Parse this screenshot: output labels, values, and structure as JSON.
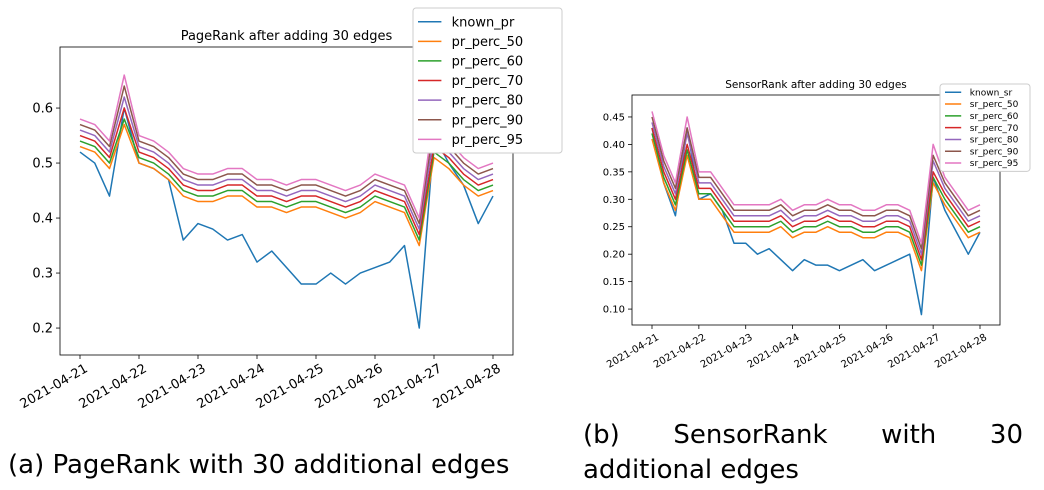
{
  "chart_data": [
    {
      "type": "line",
      "title": "PageRank after adding 30 edges",
      "caption": "(a) PageRank with 30 additional edges",
      "categories": [
        "2021-04-21",
        null,
        null,
        null,
        "2021-04-22",
        null,
        null,
        null,
        "2021-04-23",
        null,
        null,
        null,
        "2021-04-24",
        null,
        null,
        null,
        "2021-04-25",
        null,
        null,
        null,
        "2021-04-26",
        null,
        null,
        null,
        "2021-04-27",
        null,
        null,
        null,
        "2021-04-28"
      ],
      "ylim": [
        0.151,
        0.711
      ],
      "yticks": [
        0.2,
        0.3,
        0.4,
        0.5,
        0.6
      ],
      "legend": "upper right",
      "series": [
        {
          "name": "known_pr",
          "color": "#1f77b4",
          "values": [
            0.52,
            0.5,
            0.44,
            0.6,
            0.5,
            0.49,
            0.47,
            0.36,
            0.39,
            0.38,
            0.36,
            0.37,
            0.32,
            0.34,
            0.31,
            0.28,
            0.28,
            0.3,
            0.28,
            0.3,
            0.31,
            0.32,
            0.35,
            0.2,
            0.55,
            0.5,
            0.46,
            0.39,
            0.44
          ]
        },
        {
          "name": "pr_perc_50",
          "color": "#ff7f0e",
          "values": [
            0.53,
            0.52,
            0.49,
            0.57,
            0.5,
            0.49,
            0.47,
            0.44,
            0.43,
            0.43,
            0.44,
            0.44,
            0.42,
            0.42,
            0.41,
            0.42,
            0.42,
            0.41,
            0.4,
            0.41,
            0.43,
            0.42,
            0.41,
            0.35,
            0.51,
            0.49,
            0.46,
            0.44,
            0.45
          ]
        },
        {
          "name": "pr_perc_60",
          "color": "#2ca02c",
          "values": [
            0.54,
            0.53,
            0.5,
            0.58,
            0.51,
            0.5,
            0.48,
            0.45,
            0.44,
            0.44,
            0.45,
            0.45,
            0.43,
            0.43,
            0.42,
            0.43,
            0.43,
            0.42,
            0.41,
            0.42,
            0.44,
            0.43,
            0.42,
            0.36,
            0.52,
            0.5,
            0.47,
            0.45,
            0.46
          ]
        },
        {
          "name": "pr_perc_70",
          "color": "#d62728",
          "values": [
            0.55,
            0.54,
            0.51,
            0.6,
            0.52,
            0.51,
            0.49,
            0.46,
            0.45,
            0.45,
            0.46,
            0.46,
            0.44,
            0.44,
            0.43,
            0.44,
            0.44,
            0.43,
            0.42,
            0.43,
            0.45,
            0.44,
            0.43,
            0.37,
            0.53,
            0.51,
            0.48,
            0.46,
            0.47
          ]
        },
        {
          "name": "pr_perc_80",
          "color": "#9467bd",
          "values": [
            0.56,
            0.55,
            0.52,
            0.62,
            0.53,
            0.52,
            0.5,
            0.47,
            0.46,
            0.46,
            0.47,
            0.47,
            0.45,
            0.45,
            0.44,
            0.45,
            0.45,
            0.44,
            0.43,
            0.44,
            0.46,
            0.45,
            0.44,
            0.38,
            0.55,
            0.52,
            0.49,
            0.47,
            0.48
          ]
        },
        {
          "name": "pr_perc_90",
          "color": "#8c564b",
          "values": [
            0.57,
            0.56,
            0.53,
            0.64,
            0.54,
            0.53,
            0.51,
            0.48,
            0.47,
            0.47,
            0.48,
            0.48,
            0.46,
            0.46,
            0.45,
            0.46,
            0.46,
            0.45,
            0.44,
            0.45,
            0.47,
            0.46,
            0.45,
            0.39,
            0.57,
            0.53,
            0.5,
            0.48,
            0.49
          ]
        },
        {
          "name": "pr_perc_95",
          "color": "#e377c2",
          "values": [
            0.58,
            0.57,
            0.54,
            0.66,
            0.55,
            0.54,
            0.52,
            0.49,
            0.48,
            0.48,
            0.49,
            0.49,
            0.47,
            0.47,
            0.46,
            0.47,
            0.47,
            0.46,
            0.45,
            0.46,
            0.48,
            0.47,
            0.46,
            0.4,
            0.59,
            0.54,
            0.51,
            0.49,
            0.5
          ]
        }
      ]
    },
    {
      "type": "line",
      "title": "SensorRank after adding 30 edges",
      "caption": "(b) SensorRank with 30 additional edges",
      "categories": [
        "2021-04-21",
        null,
        null,
        null,
        "2021-04-22",
        null,
        null,
        null,
        "2021-04-23",
        null,
        null,
        null,
        "2021-04-24",
        null,
        null,
        null,
        "2021-04-25",
        null,
        null,
        null,
        "2021-04-26",
        null,
        null,
        null,
        "2021-04-27",
        null,
        null,
        null,
        "2021-04-28"
      ],
      "ylim": [
        0.071,
        0.49
      ],
      "yticks": [
        {
          "value": 0.1,
          "label": "0.10"
        },
        0.15,
        {
          "value": 0.2,
          "label": "0.20"
        },
        0.25,
        {
          "value": 0.3,
          "label": "0.30"
        },
        0.35,
        {
          "value": 0.4,
          "label": "0.40"
        },
        0.45
      ],
      "legend": "upper right",
      "series": [
        {
          "name": "known_sr",
          "color": "#1f77b4",
          "values": [
            0.43,
            0.33,
            0.27,
            0.43,
            0.3,
            0.31,
            0.28,
            0.22,
            0.22,
            0.2,
            0.21,
            0.19,
            0.17,
            0.19,
            0.18,
            0.18,
            0.17,
            0.18,
            0.19,
            0.17,
            0.18,
            0.19,
            0.2,
            0.09,
            0.34,
            0.28,
            0.24,
            0.2,
            0.24
          ]
        },
        {
          "name": "sr_perc_50",
          "color": "#ff7f0e",
          "values": [
            0.41,
            0.33,
            0.28,
            0.38,
            0.3,
            0.3,
            0.27,
            0.24,
            0.24,
            0.24,
            0.24,
            0.25,
            0.23,
            0.24,
            0.24,
            0.25,
            0.24,
            0.24,
            0.23,
            0.23,
            0.24,
            0.24,
            0.23,
            0.17,
            0.33,
            0.29,
            0.26,
            0.23,
            0.24
          ]
        },
        {
          "name": "sr_perc_60",
          "color": "#2ca02c",
          "values": [
            0.42,
            0.34,
            0.29,
            0.39,
            0.31,
            0.31,
            0.28,
            0.25,
            0.25,
            0.25,
            0.25,
            0.26,
            0.24,
            0.25,
            0.25,
            0.26,
            0.25,
            0.25,
            0.24,
            0.24,
            0.25,
            0.25,
            0.24,
            0.18,
            0.34,
            0.3,
            0.27,
            0.24,
            0.25
          ]
        },
        {
          "name": "sr_perc_70",
          "color": "#d62728",
          "values": [
            0.43,
            0.35,
            0.3,
            0.4,
            0.32,
            0.32,
            0.29,
            0.26,
            0.26,
            0.26,
            0.26,
            0.27,
            0.25,
            0.26,
            0.26,
            0.27,
            0.26,
            0.26,
            0.25,
            0.25,
            0.26,
            0.26,
            0.25,
            0.19,
            0.35,
            0.31,
            0.28,
            0.25,
            0.26
          ]
        },
        {
          "name": "sr_perc_80",
          "color": "#9467bd",
          "values": [
            0.44,
            0.36,
            0.31,
            0.42,
            0.33,
            0.33,
            0.3,
            0.27,
            0.27,
            0.27,
            0.27,
            0.28,
            0.26,
            0.27,
            0.27,
            0.28,
            0.27,
            0.27,
            0.26,
            0.26,
            0.27,
            0.27,
            0.26,
            0.2,
            0.37,
            0.32,
            0.29,
            0.26,
            0.27
          ]
        },
        {
          "name": "sr_perc_90",
          "color": "#8c564b",
          "values": [
            0.45,
            0.37,
            0.32,
            0.43,
            0.34,
            0.34,
            0.31,
            0.28,
            0.28,
            0.28,
            0.28,
            0.29,
            0.27,
            0.28,
            0.28,
            0.29,
            0.28,
            0.28,
            0.27,
            0.27,
            0.28,
            0.28,
            0.27,
            0.21,
            0.38,
            0.33,
            0.3,
            0.27,
            0.28
          ]
        },
        {
          "name": "sr_perc_95",
          "color": "#e377c2",
          "values": [
            0.46,
            0.38,
            0.33,
            0.45,
            0.35,
            0.35,
            0.32,
            0.29,
            0.29,
            0.29,
            0.29,
            0.3,
            0.28,
            0.29,
            0.29,
            0.3,
            0.29,
            0.29,
            0.28,
            0.28,
            0.29,
            0.29,
            0.28,
            0.22,
            0.4,
            0.34,
            0.31,
            0.28,
            0.29
          ]
        }
      ]
    }
  ]
}
